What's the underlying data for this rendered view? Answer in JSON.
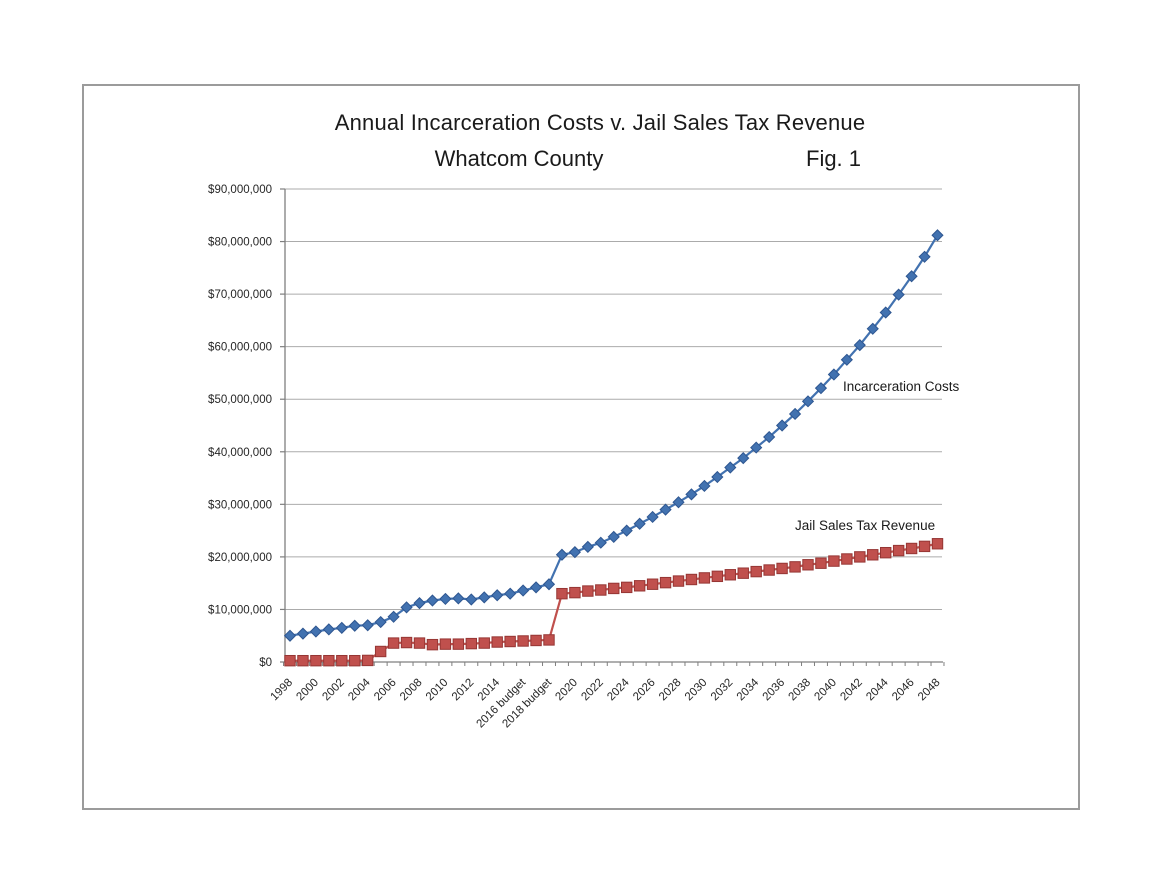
{
  "page": {
    "title": "Annual Incarceration Costs v. Jail Sales Tax Revenue",
    "subtitle": "Whatcom County",
    "figure_label": "Fig. 1"
  },
  "chart_data": {
    "type": "line",
    "title": "Annual Incarceration Costs v. Jail Sales Tax Revenue",
    "subtitle": "Whatcom County",
    "figure_label": "Fig. 1",
    "xlabel": "",
    "ylabel": "",
    "ylim": [
      0,
      90000000
    ],
    "y_tick_step": 10000000,
    "grid": "horizontal-gridlines-on",
    "legend": "inline-series-labels",
    "x": [
      1998,
      1999,
      2000,
      2001,
      2002,
      2003,
      2004,
      2005,
      2006,
      2007,
      2008,
      2009,
      2010,
      2011,
      2012,
      2013,
      2014,
      2015,
      2016,
      2017,
      2018,
      2019,
      2020,
      2021,
      2022,
      2023,
      2024,
      2025,
      2026,
      2027,
      2028,
      2029,
      2030,
      2031,
      2032,
      2033,
      2034,
      2035,
      2036,
      2037,
      2038,
      2039,
      2040,
      2041,
      2042,
      2043,
      2044,
      2045,
      2046,
      2047,
      2048
    ],
    "x_tick_labels": [
      "1998",
      "2000",
      "2002",
      "2004",
      "2006",
      "2008",
      "2010",
      "2012",
      "2014",
      "2016 budget",
      "2018 budget",
      "2020",
      "2022",
      "2024",
      "2026",
      "2028",
      "2030",
      "2032",
      "2034",
      "2036",
      "2038",
      "2040",
      "2042",
      "2044",
      "2046",
      "2048"
    ],
    "y_tick_labels": [
      "$0",
      "$10,000,000",
      "$20,000,000",
      "$30,000,000",
      "$40,000,000",
      "$50,000,000",
      "$60,000,000",
      "$70,000,000",
      "$80,000,000",
      "$90,000,000"
    ],
    "series": [
      {
        "name": "Incarceration Costs",
        "marker": "diamond",
        "color": "#4272b0",
        "marker_edge_color": "#2e5690",
        "values": [
          5000000,
          5400000,
          5800000,
          6200000,
          6500000,
          6900000,
          7000000,
          7600000,
          8600000,
          10400000,
          11200000,
          11700000,
          12000000,
          12100000,
          11900000,
          12300000,
          12700000,
          13000000,
          13600000,
          14200000,
          14800000,
          20400000,
          20900000,
          21900000,
          22700000,
          23800000,
          25000000,
          26300000,
          27600000,
          29000000,
          30400000,
          31900000,
          33500000,
          35200000,
          37000000,
          38800000,
          40800000,
          42800000,
          45000000,
          47200000,
          49600000,
          52100000,
          54700000,
          57500000,
          60300000,
          63400000,
          66500000,
          69900000,
          73400000,
          77100000,
          81200000
        ]
      },
      {
        "name": "Jail Sales Tax Revenue",
        "marker": "square",
        "color": "#c0504d",
        "marker_edge_color": "#963634",
        "values": [
          250000,
          250000,
          250000,
          250000,
          250000,
          250000,
          300000,
          2000000,
          3600000,
          3700000,
          3600000,
          3300000,
          3400000,
          3400000,
          3500000,
          3600000,
          3800000,
          3900000,
          4000000,
          4100000,
          4200000,
          13000000,
          13200000,
          13500000,
          13700000,
          14000000,
          14200000,
          14500000,
          14800000,
          15100000,
          15400000,
          15700000,
          16000000,
          16300000,
          16600000,
          16900000,
          17200000,
          17500000,
          17800000,
          18100000,
          18500000,
          18800000,
          19200000,
          19600000,
          20000000,
          20400000,
          20800000,
          21200000,
          21600000,
          22000000,
          22500000
        ]
      }
    ],
    "annotations": [
      {
        "text": "Incarceration Costs"
      },
      {
        "text": "Jail Sales Tax Revenue"
      }
    ],
    "colors": {
      "gridline": "#ababab",
      "axis": "#7f7f7f",
      "text": "#262626"
    }
  }
}
